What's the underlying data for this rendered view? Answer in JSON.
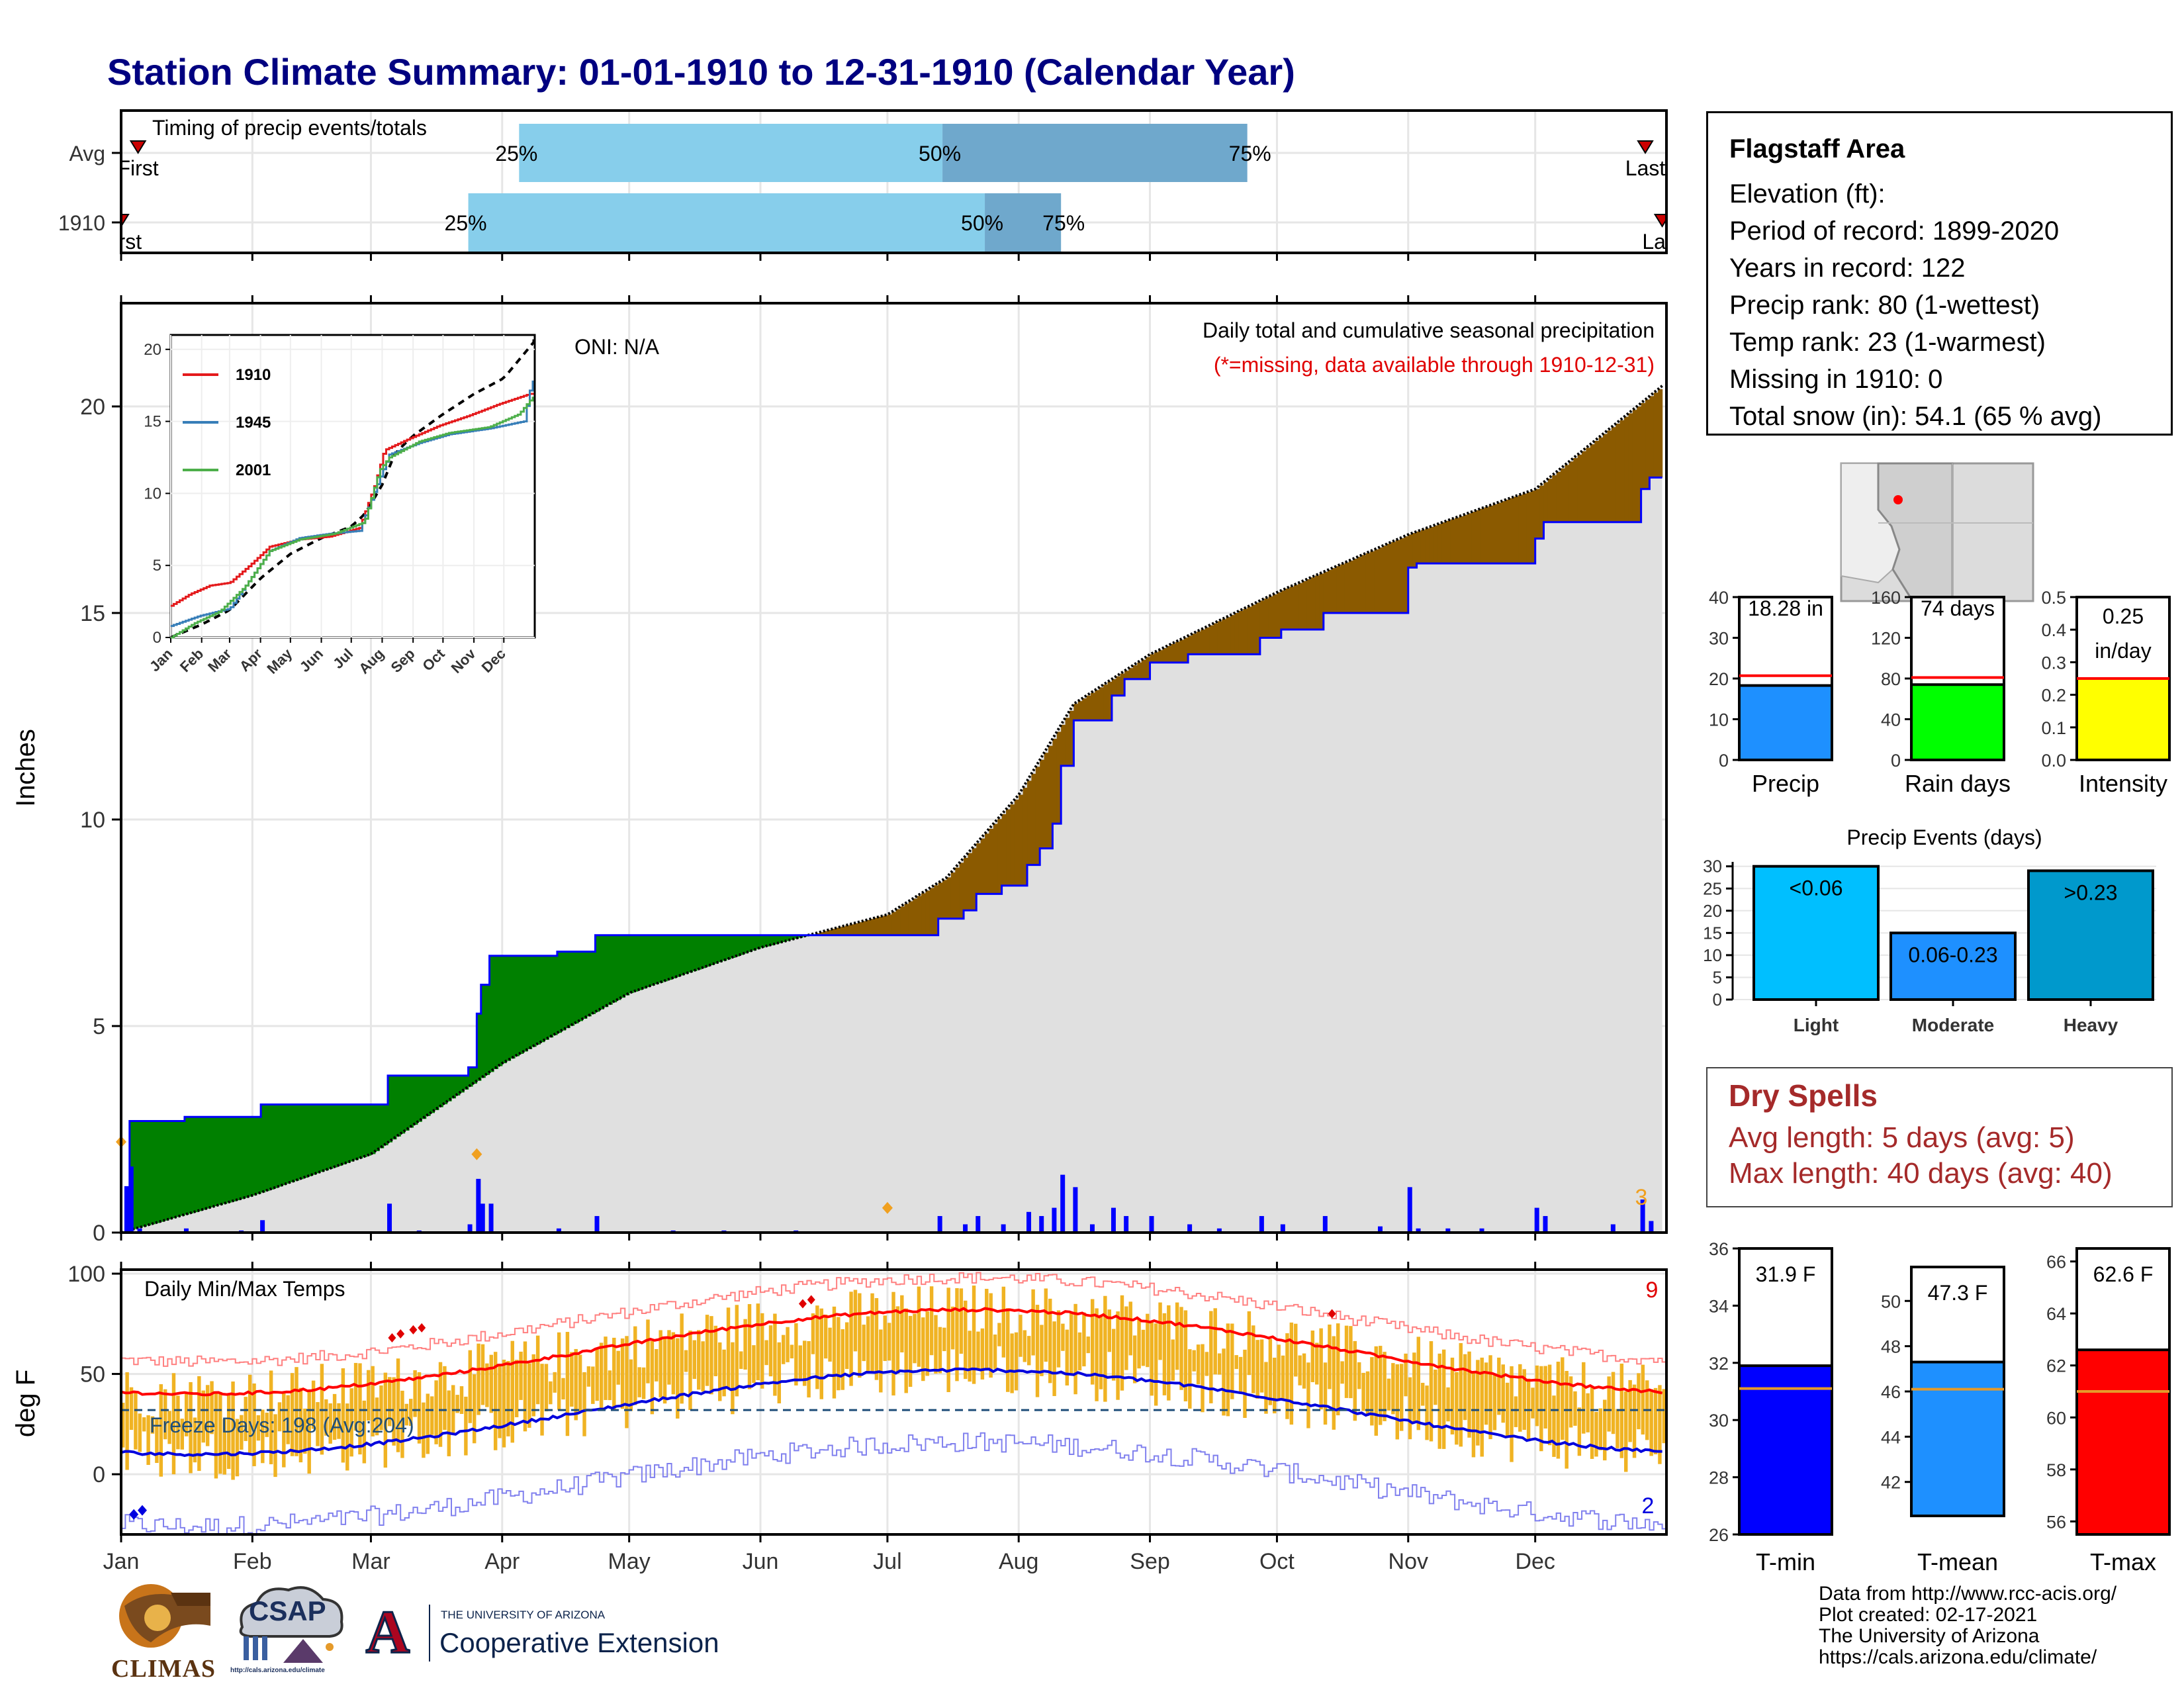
{
  "title": "Station Climate Summary: 01-01-1910 to 12-31-1910 (Calendar Year)",
  "timing": {
    "title": "Timing of precip events/totals",
    "rows": [
      {
        "label": "Avg",
        "first_label": "First",
        "last_label": "Last",
        "first_doy": 5,
        "last_doy": 361,
        "q25_label": "25%",
        "q50_label": "50%",
        "q75_label": "75%",
        "q25": 95,
        "q50": 195,
        "q75": 267
      },
      {
        "label": "1910",
        "first_label": "First",
        "last_label": "Last",
        "first_doy": 1,
        "last_doy": 365,
        "q25_label": "25%",
        "q50_label": "50%",
        "q75_label": "75%",
        "q25": 83,
        "q50": 205,
        "q75": 223
      }
    ],
    "colors": {
      "light": "#87ceeb",
      "dark": "#6fa8cc",
      "marker": "#cc0000"
    }
  },
  "precip_panel": {
    "ylabel": "Inches",
    "oni": "ONI: N/A",
    "note1": "Daily total and cumulative seasonal precipitation",
    "note2": "(*=missing, data available through 1910-12-31)",
    "count_label": "3",
    "yticks": [
      0,
      5,
      10,
      15,
      20
    ],
    "ylim": [
      0,
      22.5
    ],
    "colors": {
      "above": "#008000",
      "below": "#8b5a00",
      "avg_fill": "#e0e0e0",
      "obs_line": "#0000ff",
      "daily": "#0000ff"
    }
  },
  "inset": {
    "series": [
      {
        "name": "1910",
        "color": "#e41a1c"
      },
      {
        "name": "1945",
        "color": "#377eb8"
      },
      {
        "name": "2001",
        "color": "#4daf4a"
      }
    ],
    "yticks": [
      0,
      5,
      10,
      15,
      20
    ],
    "months": [
      "Jan",
      "Feb",
      "Mar",
      "Apr",
      "May",
      "Jun",
      "Jul",
      "Aug",
      "Sep",
      "Oct",
      "Nov",
      "Dec"
    ]
  },
  "temp_panel": {
    "ylabel": "deg F",
    "title": "Daily Min/Max Temps",
    "freeze_label": "Freeze Days: 198 (Avg:204)",
    "count_high": "9",
    "count_low": "2",
    "yticks": [
      0,
      50,
      100
    ],
    "ylim": [
      -30,
      102
    ],
    "freeze_line": 32,
    "colors": {
      "range": "#f0b323",
      "avg_max": "#ff0000",
      "avg_min": "#0000dd",
      "rec_max": "#ff8080",
      "rec_min": "#8080ee"
    }
  },
  "months": [
    "Jan",
    "Feb",
    "Mar",
    "Apr",
    "May",
    "Jun",
    "Jul",
    "Aug",
    "Sep",
    "Oct",
    "Nov",
    "Dec"
  ],
  "info": {
    "station": "Flagstaff Area",
    "lines": [
      "Elevation (ft):",
      "Period of record: 1899-2020",
      "Years in record: 122",
      "Precip rank: 80 (1-wettest)",
      "Temp rank: 23 (1-warmest)",
      "Missing in 1910: 0",
      "Total snow (in): 54.1 (65 % avg)"
    ]
  },
  "gauges_precip": [
    {
      "name": "Precip",
      "label": "18.28 in",
      "value": 18.28,
      "avg": 20.7,
      "max": 40,
      "ticks": [
        0,
        10,
        20,
        30,
        40
      ],
      "color": "#1e90ff"
    },
    {
      "name": "Rain days",
      "label": "74 days",
      "value": 74,
      "avg": 81,
      "max": 160,
      "ticks": [
        0,
        40,
        80,
        120,
        160
      ],
      "color": "#00ff00"
    },
    {
      "name": "Intensity",
      "label": "0.25",
      "label2": "in/day",
      "value": 0.25,
      "avg": 0.25,
      "max": 0.5,
      "ticks": [
        "0.0",
        "0.1",
        "0.2",
        "0.3",
        "0.4",
        "0.5"
      ],
      "color": "#ffff00"
    }
  ],
  "events": {
    "title": "Precip Events (days)",
    "bars": [
      {
        "cat": "Light",
        "label": "<0.06",
        "value": 30,
        "color": "#00bfff"
      },
      {
        "cat": "Moderate",
        "label": "0.06-0.23",
        "value": 15,
        "color": "#1e90ff"
      },
      {
        "cat": "Heavy",
        "label": ">0.23",
        "value": 29,
        "color": "#0099cc"
      }
    ],
    "ticks": [
      0,
      5,
      10,
      15,
      20,
      25,
      30
    ],
    "max": 31
  },
  "dry_spells": {
    "title": "Dry Spells",
    "avg_line": "Avg length: 5 days (avg: 5)",
    "max_line": "Max length: 40 days (avg: 40)",
    "color": "#a52a2a"
  },
  "gauges_temp": [
    {
      "name": "T-min",
      "label": "31.9 F",
      "value": 31.9,
      "avg": 31.1,
      "min": 26,
      "max": 36,
      "ticks": [
        26,
        28,
        30,
        32,
        34,
        36
      ],
      "color": "#0000ff"
    },
    {
      "name": "T-mean",
      "label": "47.3 F",
      "value": 47.3,
      "avg": 46.1,
      "min": 40.5,
      "max": 51.5,
      "ticks": [
        42,
        44,
        46,
        48,
        50
      ],
      "color": "#1e90ff"
    },
    {
      "name": "T-max",
      "label": "62.6 F",
      "value": 62.6,
      "avg": 61,
      "min": 55.5,
      "max": 66.5,
      "ticks": [
        56,
        58,
        60,
        62,
        64,
        66
      ],
      "color": "#ff0000"
    }
  ],
  "credits": [
    "Data from http://www.rcc-acis.org/",
    "Plot created: 02-17-2021",
    "The University of Arizona",
    "https://cals.arizona.edu/climate/"
  ],
  "logos": {
    "climas": "CLIMAS",
    "csap": "CSAP",
    "csap_url": "http://cals.arizona.edu/climate",
    "ua_top": "THE UNIVERSITY OF ARIZONA",
    "ua_bottom": "Cooperative Extension",
    "ua_letter": "A"
  }
}
